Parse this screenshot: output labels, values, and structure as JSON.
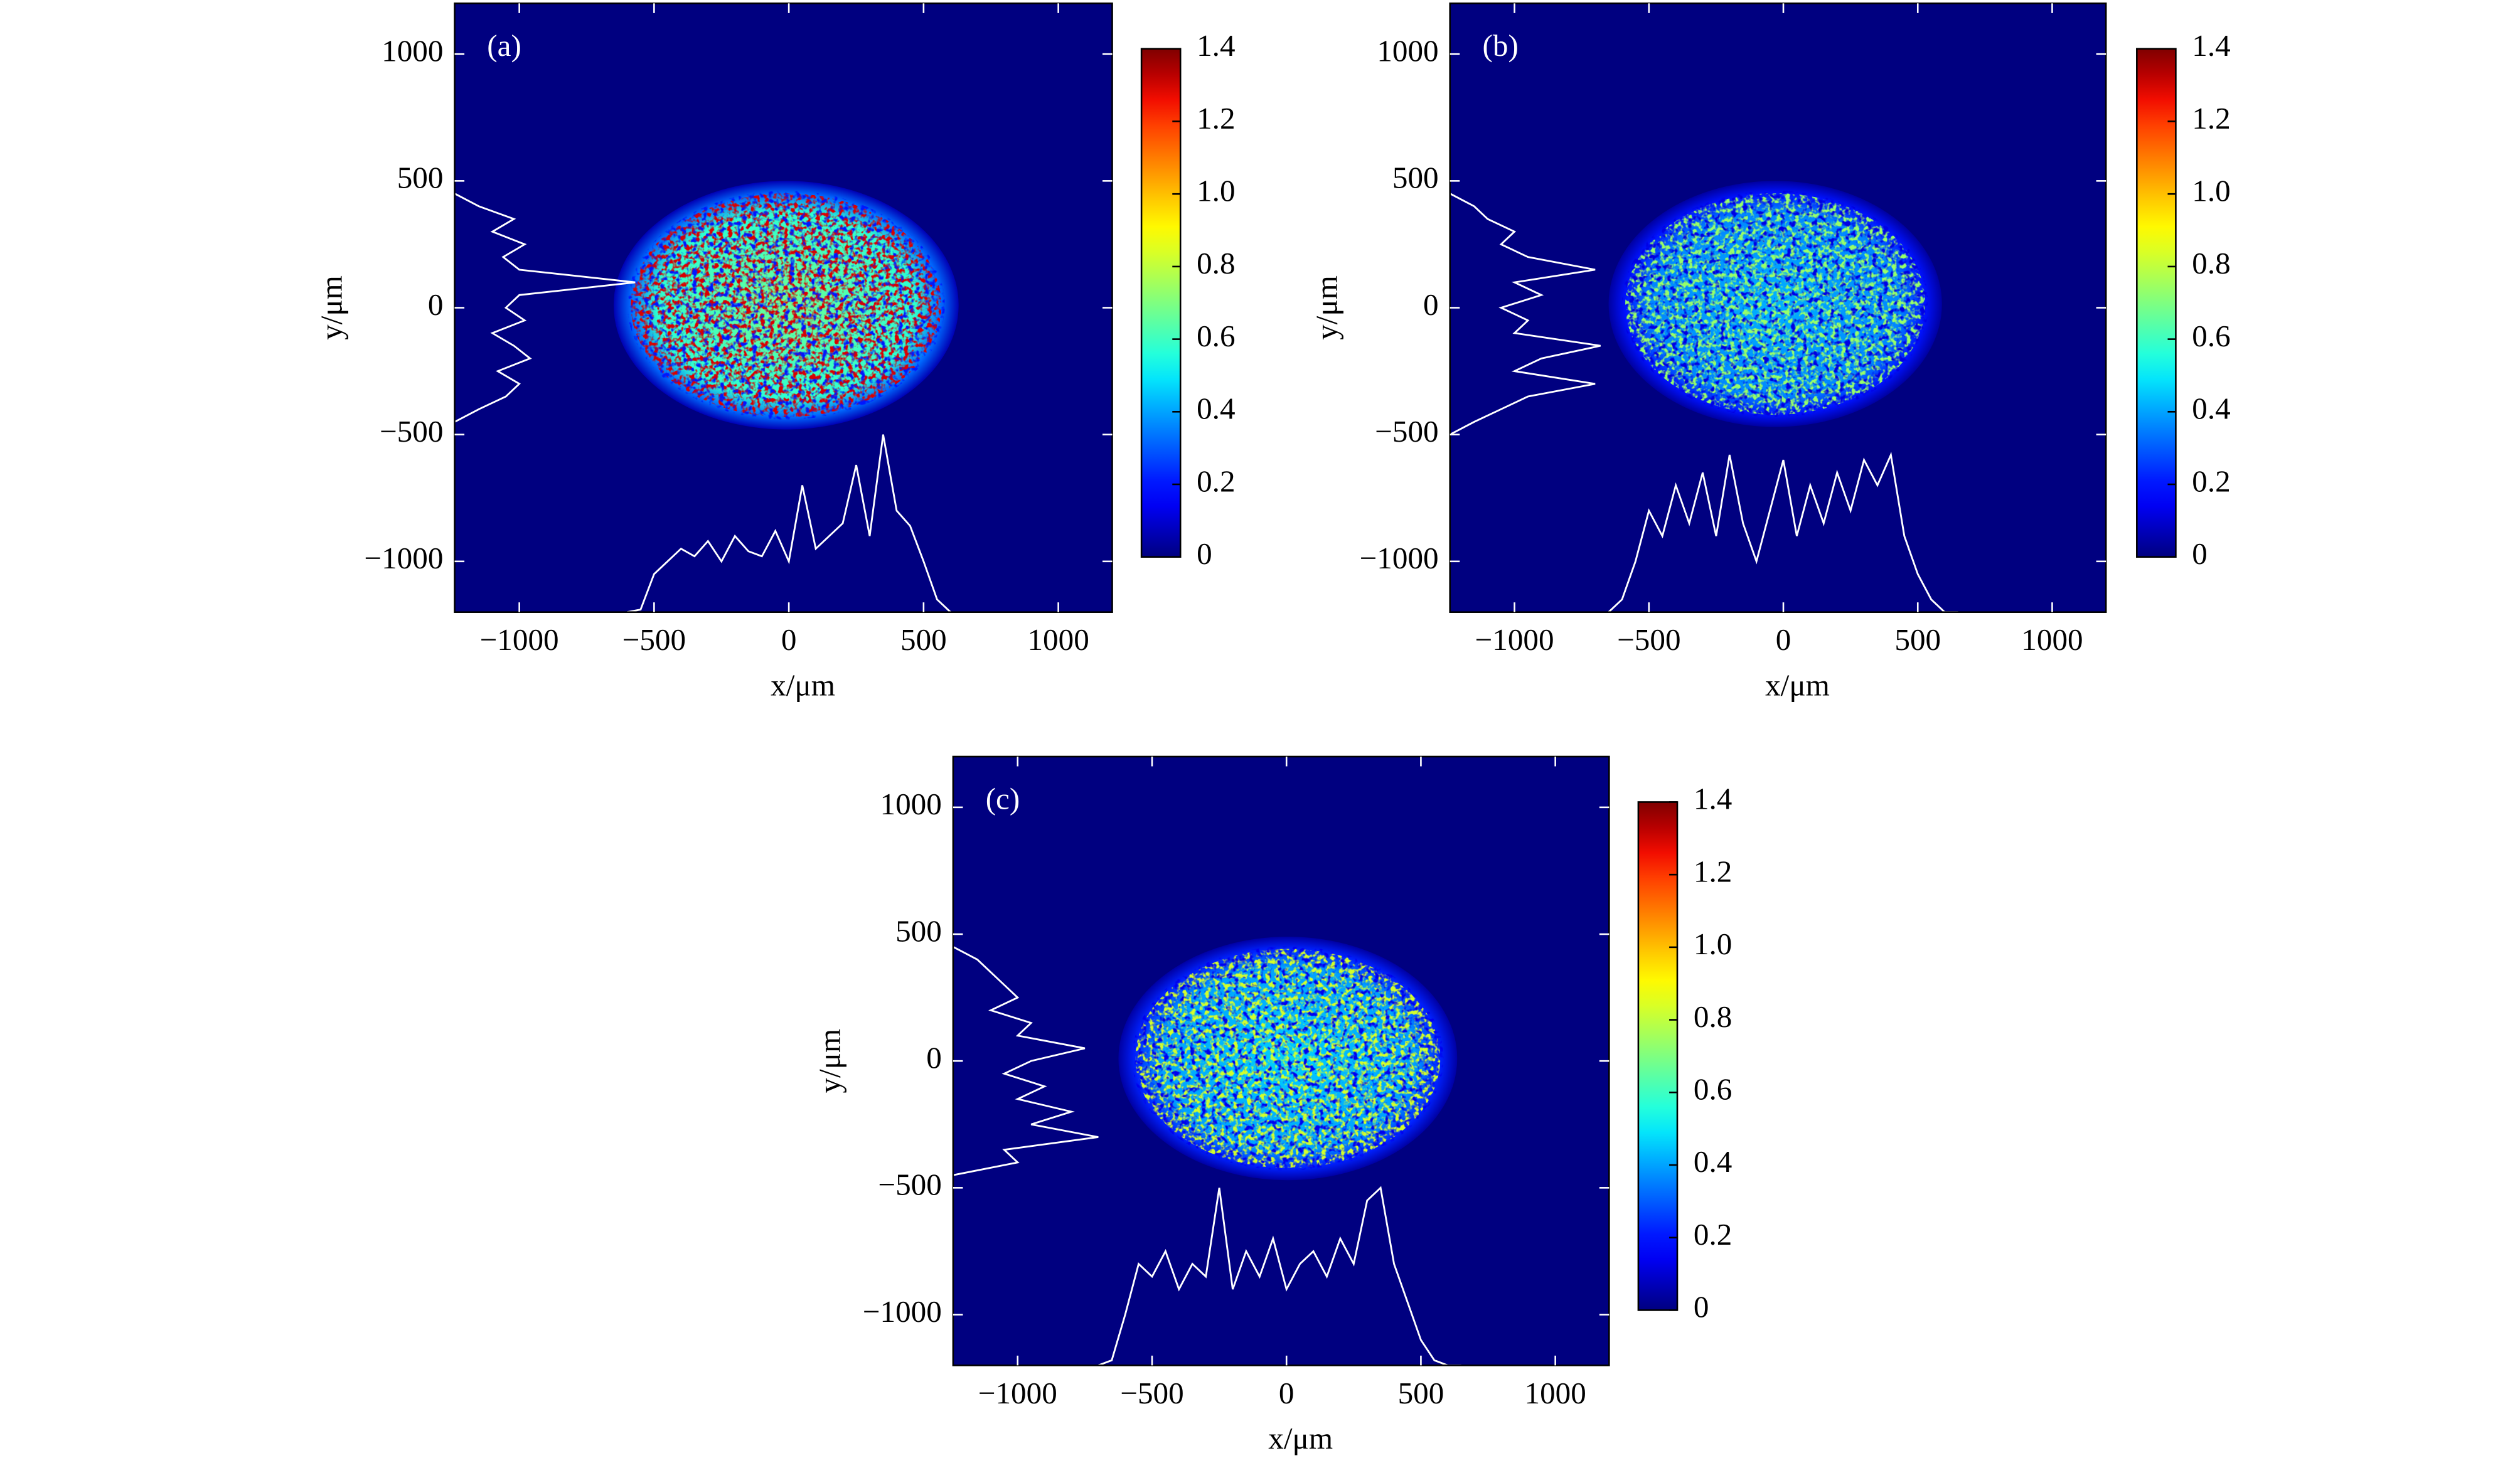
{
  "chart_data": [
    {
      "type": "heatmap",
      "panel_label": "(a)",
      "xlabel": "x/μm",
      "ylabel": "y/μm",
      "xlim": [
        -1240,
        1200
      ],
      "ylim": [
        -1200,
        1200
      ],
      "xticks": [
        {
          "value": -1000,
          "label": "−1000"
        },
        {
          "value": -500,
          "label": "−500"
        },
        0,
        500,
        1000
      ],
      "yticks": [
        {
          "value": -1000,
          "label": "−1000"
        },
        {
          "value": -500,
          "label": "−500"
        },
        0,
        500,
        1000
      ],
      "colormap": "jet",
      "clim": [
        0,
        1.4
      ],
      "cticks": [
        0,
        0.2,
        0.4,
        0.6,
        0.8,
        {
          "value": 1,
          "label": "1.0"
        },
        1.2,
        1.4
      ],
      "spot": {
        "x_center": -10,
        "y_center": 10,
        "x_radius": 640,
        "y_radius": 490,
        "peak": 1.4
      },
      "x_profile": {
        "x": [
          -600,
          -550,
          -500,
          -450,
          -400,
          -350,
          -300,
          -250,
          -200,
          -150,
          -100,
          -50,
          0,
          50,
          100,
          150,
          200,
          250,
          300,
          350,
          400,
          450,
          500,
          550,
          600
        ],
        "y": [
          -1200,
          -1190,
          -1050,
          -1000,
          -950,
          -980,
          -920,
          -1000,
          -900,
          -960,
          -980,
          -880,
          -1000,
          -700,
          -950,
          -900,
          -850,
          -620,
          -900,
          -500,
          -800,
          -860,
          -1000,
          -1150,
          -1200
        ]
      },
      "y_profile": {
        "y": [
          -450,
          -400,
          -350,
          -300,
          -250,
          -200,
          -150,
          -100,
          -50,
          0,
          50,
          100,
          150,
          200,
          250,
          300,
          350,
          400,
          450
        ],
        "x": [
          -1240,
          -1150,
          -1050,
          -1000,
          -1080,
          -960,
          -1020,
          -1100,
          -980,
          -1050,
          -1000,
          -570,
          -1000,
          -1060,
          -980,
          -1100,
          -1020,
          -1150,
          -1240
        ]
      }
    },
    {
      "type": "heatmap",
      "panel_label": "(b)",
      "xlabel": "x/μm",
      "ylabel": "y/μm",
      "xlim": [
        -1240,
        1200
      ],
      "ylim": [
        -1200,
        1200
      ],
      "xticks": [
        {
          "value": -1000,
          "label": "−1000"
        },
        {
          "value": -500,
          "label": "−500"
        },
        0,
        500,
        1000
      ],
      "yticks": [
        {
          "value": -1000,
          "label": "−1000"
        },
        {
          "value": -500,
          "label": "−500"
        },
        0,
        500,
        1000
      ],
      "colormap": "jet",
      "clim": [
        0,
        1.4
      ],
      "cticks": [
        0,
        0.2,
        0.4,
        0.6,
        0.8,
        {
          "value": 1,
          "label": "1.0"
        },
        1.2,
        1.4
      ],
      "spot": {
        "x_center": -30,
        "y_center": 15,
        "x_radius": 620,
        "y_radius": 485,
        "peak": 0.8
      },
      "x_profile": {
        "x": [
          -650,
          -600,
          -550,
          -500,
          -450,
          -400,
          -350,
          -300,
          -250,
          -200,
          -150,
          -100,
          -50,
          0,
          50,
          100,
          150,
          200,
          250,
          300,
          350,
          400,
          450,
          500,
          550,
          600,
          650
        ],
        "y": [
          -1200,
          -1150,
          -1000,
          -800,
          -900,
          -700,
          -850,
          -650,
          -900,
          -580,
          -850,
          -1000,
          -800,
          -600,
          -900,
          -700,
          -850,
          -650,
          -800,
          -600,
          -700,
          -580,
          -900,
          -1050,
          -1150,
          -1200,
          -1200
        ]
      },
      "y_profile": {
        "y": [
          -500,
          -450,
          -400,
          -350,
          -300,
          -250,
          -200,
          -150,
          -100,
          -50,
          0,
          50,
          100,
          150,
          200,
          250,
          300,
          350,
          400,
          450
        ],
        "x": [
          -1240,
          -1150,
          -1050,
          -950,
          -700,
          -1000,
          -900,
          -680,
          -1000,
          -950,
          -1050,
          -900,
          -1000,
          -700,
          -950,
          -1050,
          -1000,
          -1100,
          -1150,
          -1240
        ]
      }
    },
    {
      "type": "heatmap",
      "panel_label": "(c)",
      "xlabel": "x/μm",
      "ylabel": "y/μm",
      "xlim": [
        -1240,
        1200
      ],
      "ylim": [
        -1200,
        1200
      ],
      "xticks": [
        {
          "value": -1000,
          "label": "−1000"
        },
        {
          "value": -500,
          "label": "−500"
        },
        0,
        500,
        1000
      ],
      "yticks": [
        {
          "value": -1000,
          "label": "−1000"
        },
        {
          "value": -500,
          "label": "−500"
        },
        0,
        500,
        1000
      ],
      "colormap": "jet",
      "clim": [
        0,
        1.4
      ],
      "cticks": [
        0,
        0.2,
        0.4,
        0.6,
        0.8,
        {
          "value": 1,
          "label": "1.0"
        },
        1.2,
        1.4
      ],
      "spot": {
        "x_center": 5,
        "y_center": 10,
        "x_radius": 630,
        "y_radius": 480,
        "peak": 0.9
      },
      "x_profile": {
        "x": [
          -700,
          -650,
          -600,
          -550,
          -500,
          -450,
          -400,
          -350,
          -300,
          -250,
          -200,
          -150,
          -100,
          -50,
          0,
          50,
          100,
          150,
          200,
          250,
          300,
          350,
          400,
          450,
          500,
          550,
          600,
          650
        ],
        "y": [
          -1200,
          -1180,
          -1000,
          -800,
          -850,
          -750,
          -900,
          -800,
          -850,
          -500,
          -900,
          -750,
          -850,
          -700,
          -900,
          -800,
          -750,
          -850,
          -700,
          -800,
          -550,
          -500,
          -800,
          -950,
          -1100,
          -1180,
          -1200,
          -1200
        ]
      },
      "y_profile": {
        "y": [
          -450,
          -400,
          -350,
          -300,
          -250,
          -200,
          -150,
          -100,
          -50,
          0,
          50,
          100,
          150,
          200,
          250,
          300,
          350,
          400,
          450
        ],
        "x": [
          -1240,
          -1000,
          -1050,
          -700,
          -950,
          -800,
          -1000,
          -900,
          -1050,
          -950,
          -750,
          -1000,
          -950,
          -1100,
          -1000,
          -1050,
          -1100,
          -1150,
          -1240
        ]
      }
    }
  ]
}
